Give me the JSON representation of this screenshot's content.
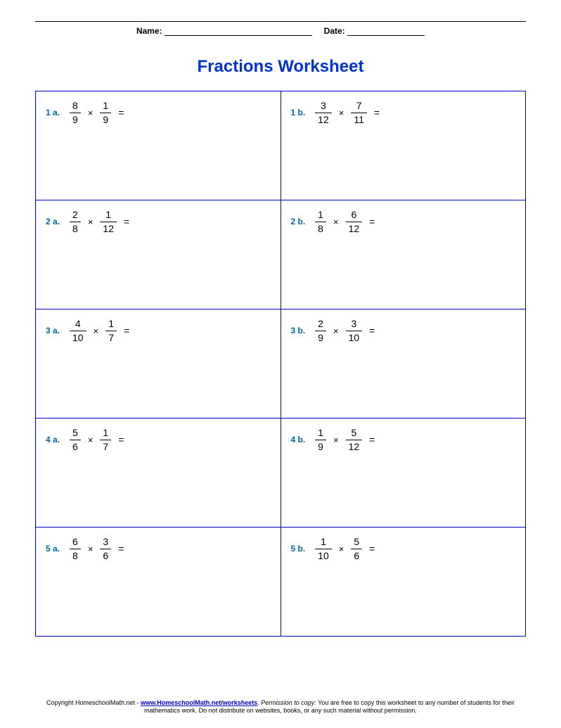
{
  "colors": {
    "title": "#0033cc",
    "cell_border": "#0000cc",
    "label": "#006699",
    "text": "#000000",
    "link": "#0000cc",
    "background": "#ffffff"
  },
  "header": {
    "name_label": "Name:",
    "name_blank_width": 210,
    "date_label": "Date:",
    "date_blank_width": 110
  },
  "title": "Fractions Worksheet",
  "problems": [
    {
      "label": "1 a.",
      "n1": "8",
      "d1": "9",
      "n2": "1",
      "d2": "9"
    },
    {
      "label": "1 b.",
      "n1": "3",
      "d1": "12",
      "n2": "7",
      "d2": "11"
    },
    {
      "label": "2 a.",
      "n1": "2",
      "d1": "8",
      "n2": "1",
      "d2": "12"
    },
    {
      "label": "2 b.",
      "n1": "1",
      "d1": "8",
      "n2": "6",
      "d2": "12"
    },
    {
      "label": "3 a.",
      "n1": "4",
      "d1": "10",
      "n2": "1",
      "d2": "7"
    },
    {
      "label": "3 b.",
      "n1": "2",
      "d1": "9",
      "n2": "3",
      "d2": "10"
    },
    {
      "label": "4 a.",
      "n1": "5",
      "d1": "6",
      "n2": "1",
      "d2": "7"
    },
    {
      "label": "4 b.",
      "n1": "1",
      "d1": "9",
      "n2": "5",
      "d2": "12"
    },
    {
      "label": "5 a.",
      "n1": "6",
      "d1": "8",
      "n2": "3",
      "d2": "6"
    },
    {
      "label": "5 b.",
      "n1": "1",
      "d1": "10",
      "n2": "5",
      "d2": "6"
    }
  ],
  "operator": "×",
  "equals": "=",
  "footer": {
    "pre_link": "Copyright HomeschoolMath.net - ",
    "link_text": "www.HomeschoolMath.net/worksheets",
    "post_link": ". ",
    "perm_label": "Permission to copy:",
    "perm_text": " You are free to copy this worksheet to any number of students for their mathematics work. Do not distribute on websites, books, or any such material without permission."
  }
}
